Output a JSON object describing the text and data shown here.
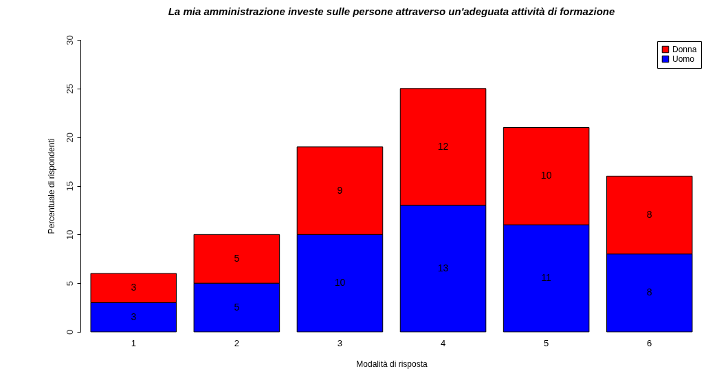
{
  "chart_data": {
    "type": "bar",
    "title": "La mia amministrazione investe sulle persone attraverso un'adeguata attività di formazione",
    "xlabel": "Modalità di risposta",
    "ylabel": "Percentuale di rispondenti",
    "categories": [
      "1",
      "2",
      "3",
      "4",
      "5",
      "6"
    ],
    "stacked": true,
    "series": [
      {
        "name": "Uomo",
        "color": "#0000ff",
        "values": [
          3,
          5,
          10,
          13,
          11,
          8
        ]
      },
      {
        "name": "Donna",
        "color": "#ff0000",
        "values": [
          3,
          5,
          9,
          12,
          10,
          8
        ]
      }
    ],
    "ylim": [
      0,
      30
    ],
    "yticks": [
      0,
      5,
      10,
      15,
      20,
      25,
      30
    ],
    "data_labels": true,
    "legend": "top right"
  }
}
